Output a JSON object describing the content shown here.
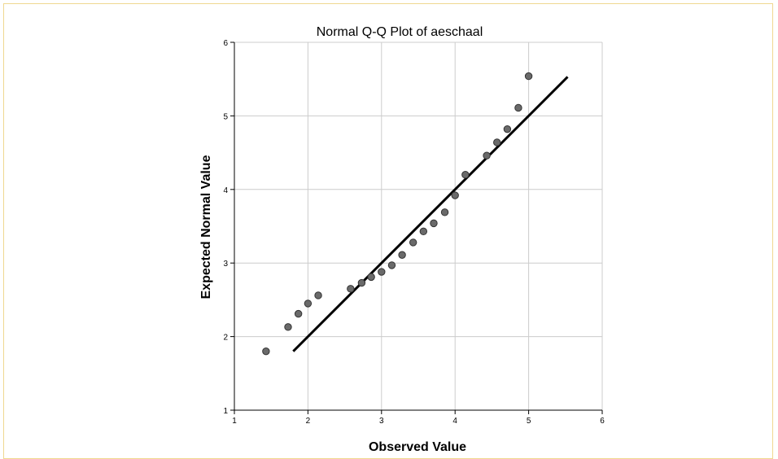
{
  "chart_data": {
    "type": "scatter",
    "title": "Normal Q-Q Plot of aeschaal",
    "xlabel": "Observed Value",
    "ylabel": "Expected Normal Value",
    "xlim": [
      1,
      6
    ],
    "ylim": [
      1,
      6
    ],
    "xticks": [
      "1",
      "2",
      "3",
      "4",
      "5",
      "6"
    ],
    "yticks": [
      "1",
      "2",
      "3",
      "4",
      "5",
      "6"
    ],
    "grid": true,
    "colors": {
      "points": "#6a6a6a",
      "point_outline": "#333333",
      "reference_line": "#000000",
      "grid": "#cccccc"
    },
    "points": [
      {
        "x": 1.43,
        "y": 1.8
      },
      {
        "x": 1.73,
        "y": 2.13
      },
      {
        "x": 1.87,
        "y": 2.31
      },
      {
        "x": 2.0,
        "y": 2.45
      },
      {
        "x": 2.14,
        "y": 2.56
      },
      {
        "x": 2.58,
        "y": 2.65
      },
      {
        "x": 2.73,
        "y": 2.73
      },
      {
        "x": 2.86,
        "y": 2.81
      },
      {
        "x": 3.0,
        "y": 2.88
      },
      {
        "x": 3.14,
        "y": 2.97
      },
      {
        "x": 3.28,
        "y": 3.11
      },
      {
        "x": 3.43,
        "y": 3.28
      },
      {
        "x": 3.57,
        "y": 3.43
      },
      {
        "x": 3.71,
        "y": 3.54
      },
      {
        "x": 3.86,
        "y": 3.69
      },
      {
        "x": 4.0,
        "y": 3.92
      },
      {
        "x": 4.14,
        "y": 4.2
      },
      {
        "x": 4.43,
        "y": 4.46
      },
      {
        "x": 4.57,
        "y": 4.64
      },
      {
        "x": 4.71,
        "y": 4.82
      },
      {
        "x": 4.86,
        "y": 5.11
      },
      {
        "x": 5.0,
        "y": 5.54
      }
    ],
    "reference_line": {
      "x1": 1.8,
      "y1": 1.8,
      "x2": 5.53,
      "y2": 5.53
    }
  }
}
